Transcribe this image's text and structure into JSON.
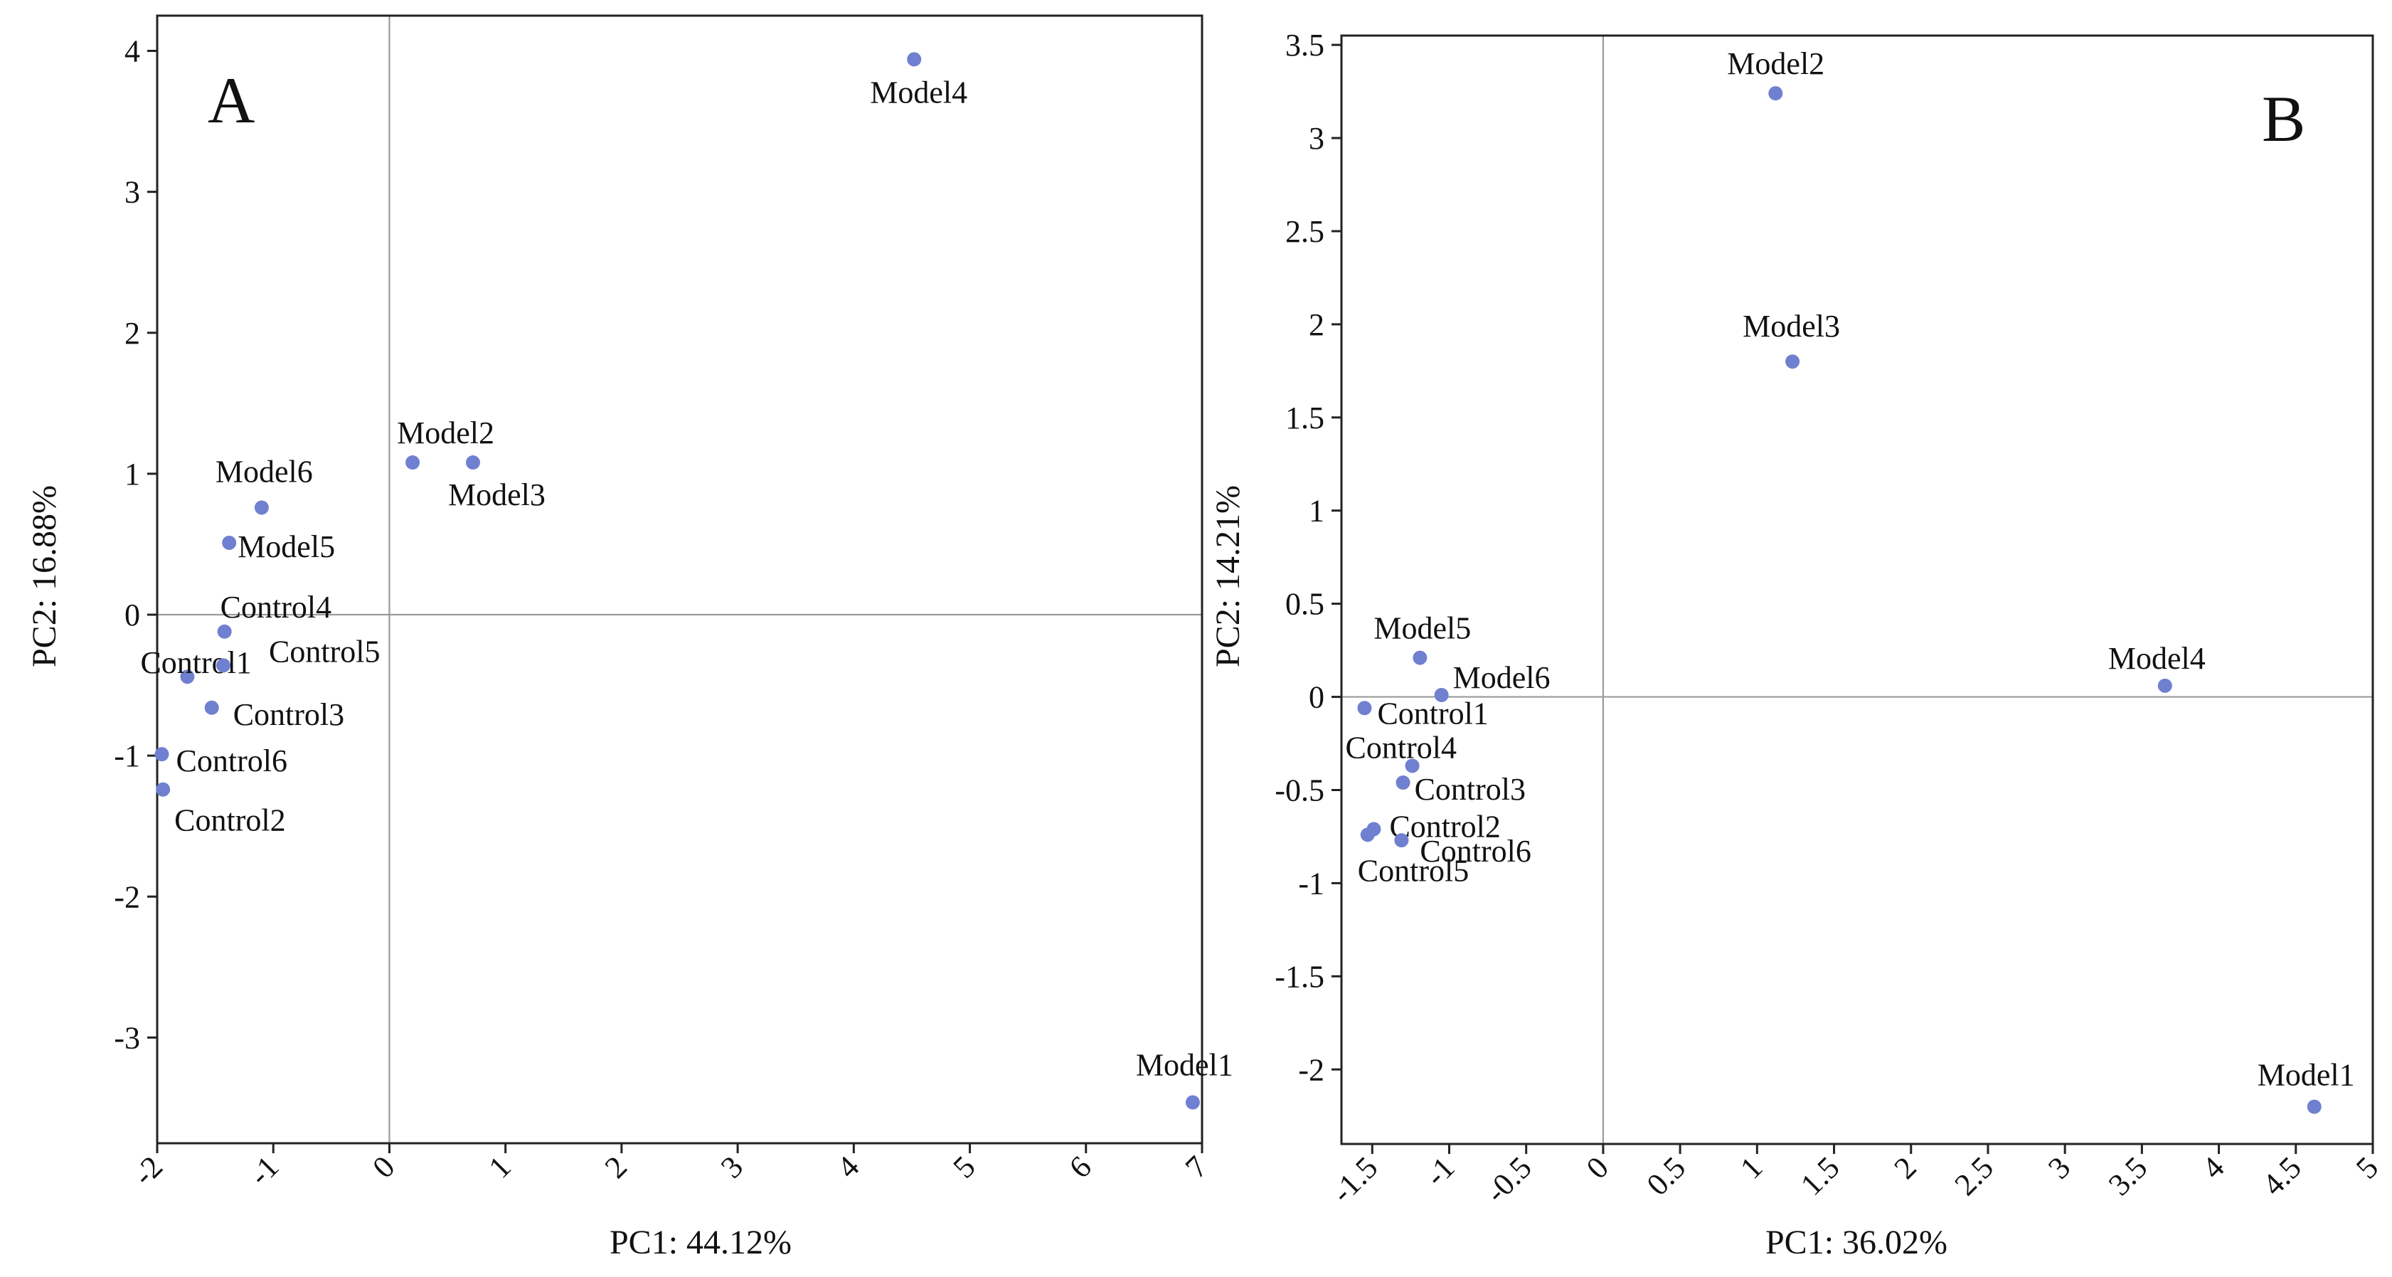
{
  "chart_data": [
    {
      "type": "scatter",
      "panel_label": "A",
      "title": "",
      "xlabel": "PC1: 44.12%",
      "ylabel": "PC2: 16.88%",
      "xlim": [
        -2.0,
        7.0
      ],
      "ylim": [
        -3.75,
        4.25
      ],
      "xticks": [
        "-2",
        "-1",
        "0",
        "1",
        "2",
        "3",
        "4",
        "5",
        "6",
        "7"
      ],
      "yticks": [
        "-3",
        "-2",
        "-1",
        "0",
        "1",
        "2",
        "3",
        "4"
      ],
      "point_color": "#7080d0",
      "points": [
        {
          "label": "Model4",
          "x": 4.52,
          "y": 3.94
        },
        {
          "label": "Model2",
          "x": 0.2,
          "y": 1.08
        },
        {
          "label": "Model3",
          "x": 0.72,
          "y": 1.08
        },
        {
          "label": "Model6",
          "x": -1.1,
          "y": 0.76
        },
        {
          "label": "Model5",
          "x": -1.38,
          "y": 0.51
        },
        {
          "label": "Control4",
          "x": -1.42,
          "y": -0.12
        },
        {
          "label": "Control1",
          "x": -1.74,
          "y": -0.44
        },
        {
          "label": "Control5",
          "x": -1.43,
          "y": -0.36
        },
        {
          "label": "Control3",
          "x": -1.53,
          "y": -0.66
        },
        {
          "label": "Control6",
          "x": -1.96,
          "y": -0.99
        },
        {
          "label": "Control2",
          "x": -1.95,
          "y": -1.24
        },
        {
          "label": "Model1",
          "x": 6.92,
          "y": -3.46
        }
      ]
    },
    {
      "type": "scatter",
      "panel_label": "B",
      "title": "",
      "xlabel": "PC1: 36.02%",
      "ylabel": "PC2: 14.21%",
      "xlim": [
        -1.7,
        5.0
      ],
      "ylim": [
        -2.4,
        3.55
      ],
      "xticks": [
        "-1.5",
        "-1",
        "-0.5",
        "0",
        "0.5",
        "1",
        "1.5",
        "2",
        "2.5",
        "3",
        "3.5",
        "4",
        "4.5",
        "5"
      ],
      "yticks": [
        "-2",
        "-1.5",
        "-1",
        "-0.5",
        "0",
        "0.5",
        "1",
        "1.5",
        "2",
        "2.5",
        "3",
        "3.5"
      ],
      "point_color": "#7080d0",
      "points": [
        {
          "label": "Model2",
          "x": 1.12,
          "y": 3.24
        },
        {
          "label": "Model3",
          "x": 1.23,
          "y": 1.8
        },
        {
          "label": "Model5",
          "x": -1.19,
          "y": 0.21
        },
        {
          "label": "Model6",
          "x": -1.05,
          "y": 0.01
        },
        {
          "label": "Model4",
          "x": 3.65,
          "y": 0.06
        },
        {
          "label": "Control1",
          "x": -1.55,
          "y": -0.06
        },
        {
          "label": "Control4",
          "x": -1.24,
          "y": -0.37
        },
        {
          "label": "Control3",
          "x": -1.3,
          "y": -0.46
        },
        {
          "label": "Control2",
          "x": -1.49,
          "y": -0.71
        },
        {
          "label": "Control5",
          "x": -1.53,
          "y": -0.74
        },
        {
          "label": "Control6",
          "x": -1.31,
          "y": -0.77
        },
        {
          "label": "Model1",
          "x": 4.62,
          "y": -2.2
        }
      ]
    }
  ]
}
